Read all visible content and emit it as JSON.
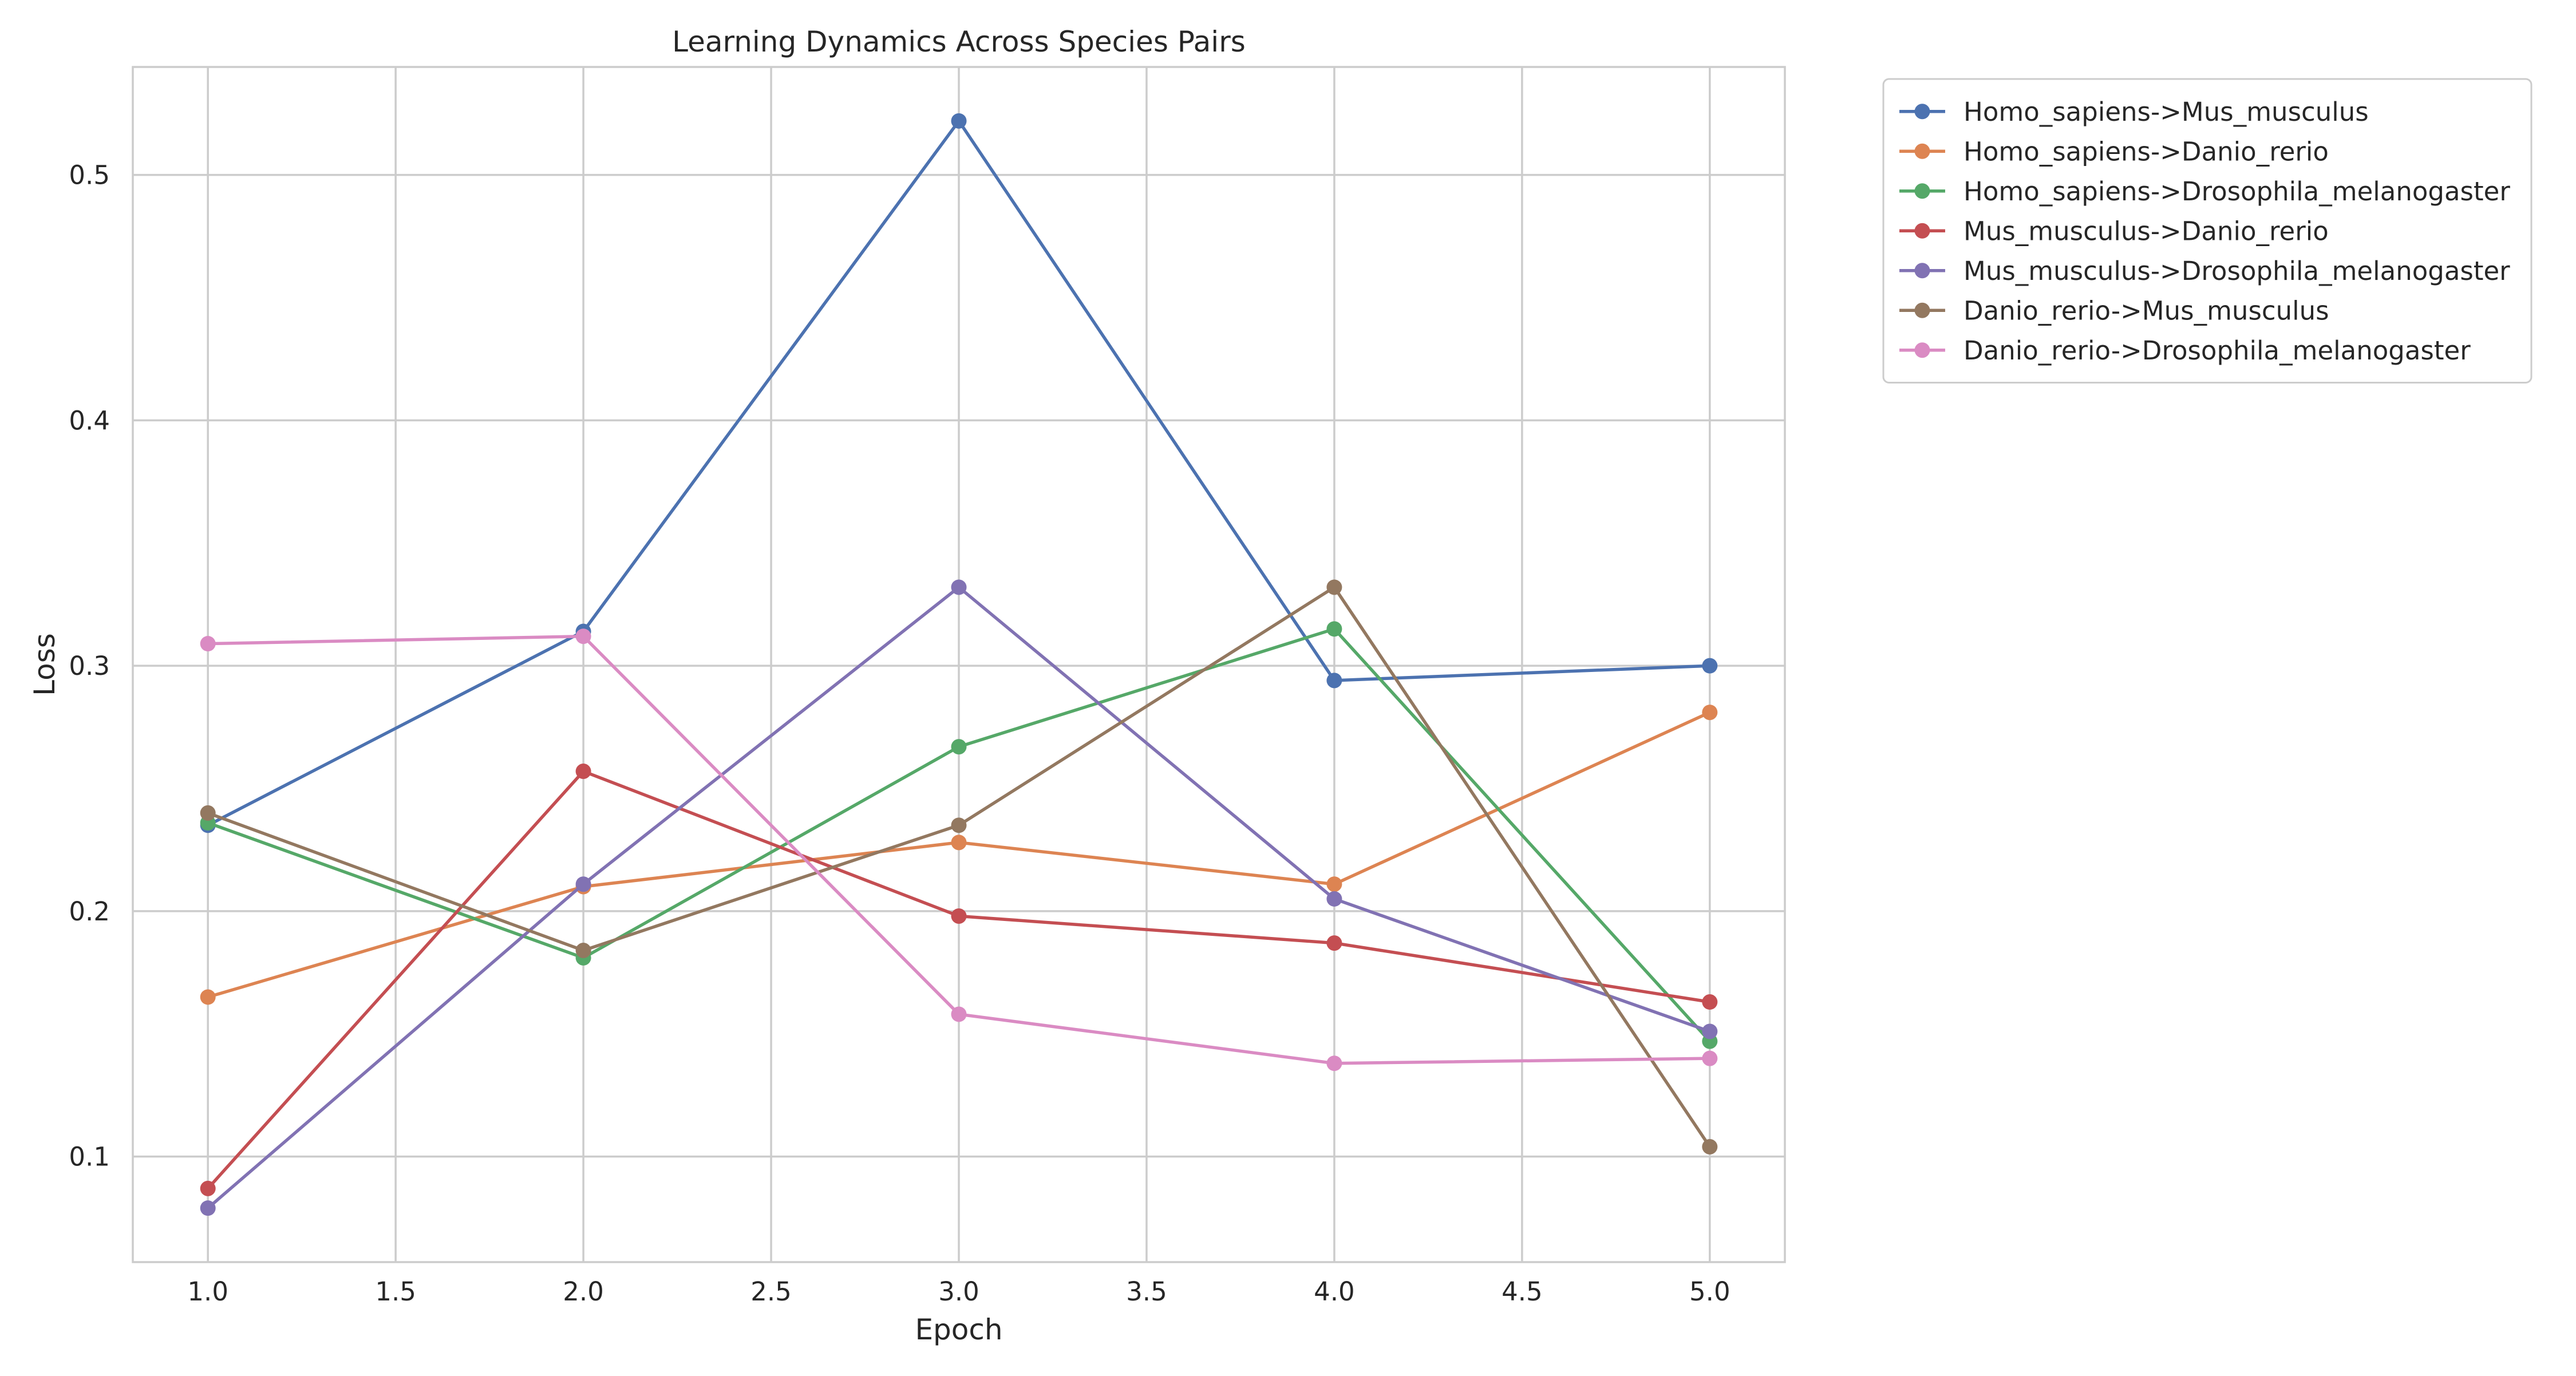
{
  "chart_data": {
    "type": "line",
    "title": "Learning Dynamics Across Species Pairs",
    "xlabel": "Epoch",
    "ylabel": "Loss",
    "xlim": [
      0.8,
      5.2
    ],
    "ylim": [
      0.057,
      0.544
    ],
    "x_ticks": [
      1.0,
      1.5,
      2.0,
      2.5,
      3.0,
      3.5,
      4.0,
      4.5,
      5.0
    ],
    "x_tick_labels": [
      "1.0",
      "1.5",
      "2.0",
      "2.5",
      "3.0",
      "3.5",
      "4.0",
      "4.5",
      "5.0"
    ],
    "y_ticks": [
      0.1,
      0.2,
      0.3,
      0.4,
      0.5
    ],
    "y_tick_labels": [
      "0.1",
      "0.2",
      "0.3",
      "0.4",
      "0.5"
    ],
    "grid": true,
    "legend_position": "outside-top-right",
    "x": [
      1,
      2,
      3,
      4,
      5
    ],
    "series": [
      {
        "name": "Homo_sapiens->Mus_musculus",
        "color": "#4c72b0",
        "values": [
          0.235,
          0.314,
          0.522,
          0.294,
          0.3
        ]
      },
      {
        "name": "Homo_sapiens->Danio_rerio",
        "color": "#dd8452",
        "values": [
          0.165,
          0.21,
          0.228,
          0.211,
          0.281
        ]
      },
      {
        "name": "Homo_sapiens->Drosophila_melanogaster",
        "color": "#55a868",
        "values": [
          0.236,
          0.181,
          0.267,
          0.315,
          0.147
        ]
      },
      {
        "name": "Mus_musculus->Danio_rerio",
        "color": "#c44e52",
        "values": [
          0.087,
          0.257,
          0.198,
          0.187,
          0.163
        ]
      },
      {
        "name": "Mus_musculus->Drosophila_melanogaster",
        "color": "#8172b3",
        "values": [
          0.079,
          0.211,
          0.332,
          0.205,
          0.151
        ]
      },
      {
        "name": "Danio_rerio->Mus_musculus",
        "color": "#937860",
        "values": [
          0.24,
          0.184,
          0.235,
          0.332,
          0.104
        ]
      },
      {
        "name": "Danio_rerio->Drosophila_melanogaster",
        "color": "#da8bc3",
        "values": [
          0.309,
          0.312,
          0.158,
          0.138,
          0.14
        ]
      }
    ]
  }
}
